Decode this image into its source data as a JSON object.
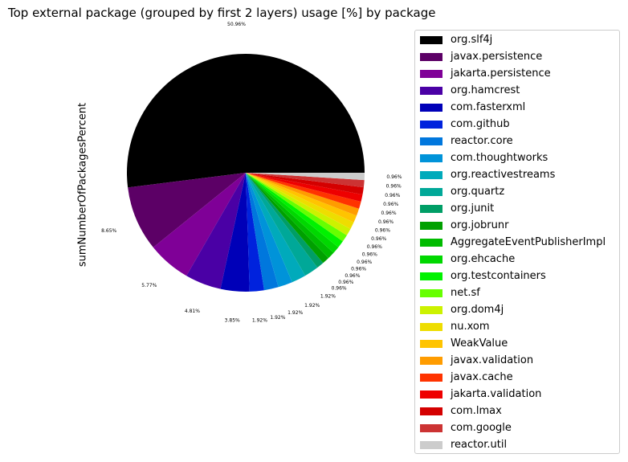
{
  "chart_data": {
    "type": "pie",
    "title": "Top external package (grouped by first 2 layers) usage [%] by package",
    "ylabel": "sumNumberOfPackagesPercent",
    "legend_position": "right",
    "slices": [
      {
        "label": "org.slf4j",
        "value": 50.96,
        "color": "#000000"
      },
      {
        "label": "javax.persistence",
        "value": 8.65,
        "color": "#5c0066"
      },
      {
        "label": "jakarta.persistence",
        "value": 5.77,
        "color": "#7f0097"
      },
      {
        "label": "org.hamcrest",
        "value": 4.81,
        "color": "#4a00a5"
      },
      {
        "label": "com.fasterxml",
        "value": 3.85,
        "color": "#0000b8"
      },
      {
        "label": "com.github",
        "value": 1.92,
        "color": "#0022dd"
      },
      {
        "label": "reactor.core",
        "value": 1.92,
        "color": "#0077dd"
      },
      {
        "label": "com.thoughtworks",
        "value": 1.92,
        "color": "#0093d9"
      },
      {
        "label": "org.reactivestreams",
        "value": 1.92,
        "color": "#00aabb"
      },
      {
        "label": "org.quartz",
        "value": 1.92,
        "color": "#00a898"
      },
      {
        "label": "org.junit",
        "value": 0.96,
        "color": "#009e66"
      },
      {
        "label": "org.jobrunr",
        "value": 0.96,
        "color": "#00a000"
      },
      {
        "label": "AggregateEventPublisherImpl",
        "value": 0.96,
        "color": "#00bb00"
      },
      {
        "label": "org.ehcache",
        "value": 0.96,
        "color": "#00d800"
      },
      {
        "label": "org.testcontainers",
        "value": 0.96,
        "color": "#00f200"
      },
      {
        "label": "net.sf",
        "value": 0.96,
        "color": "#66ff00"
      },
      {
        "label": "org.dom4j",
        "value": 0.96,
        "color": "#ccf200"
      },
      {
        "label": "nu.xom",
        "value": 0.96,
        "color": "#eedd00"
      },
      {
        "label": "WeakValue",
        "value": 0.96,
        "color": "#ffc400"
      },
      {
        "label": "javax.validation",
        "value": 0.96,
        "color": "#ff9c00"
      },
      {
        "label": "javax.cache",
        "value": 0.96,
        "color": "#ff3300"
      },
      {
        "label": "jakarta.validation",
        "value": 0.96,
        "color": "#ee0000"
      },
      {
        "label": "com.lmax",
        "value": 0.96,
        "color": "#d40000"
      },
      {
        "label": "com.google",
        "value": 0.96,
        "color": "#cc3333"
      },
      {
        "label": "reactor.util",
        "value": 0.96,
        "color": "#cccccc"
      }
    ]
  }
}
